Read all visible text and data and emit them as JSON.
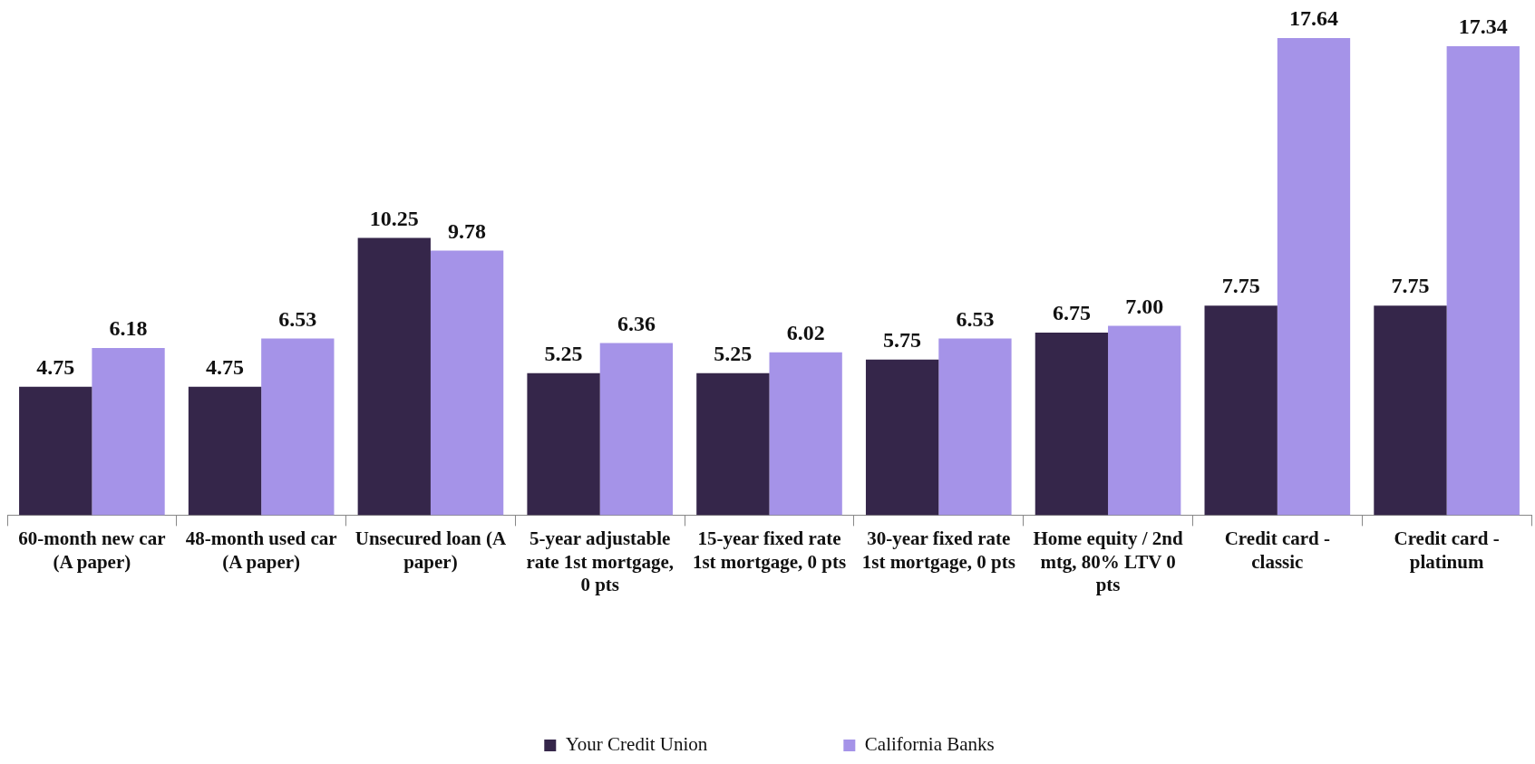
{
  "chart_data": {
    "type": "bar",
    "categories": [
      "60-month new car (A paper)",
      "48-month used car (A paper)",
      "Unsecured loan (A paper)",
      "5-year adjustable rate 1st mortgage, 0 pts",
      "15-year fixed rate 1st mortgage, 0 pts",
      "30-year fixed rate 1st mortgage, 0 pts",
      "Home equity / 2nd mtg, 80% LTV 0 pts",
      "Credit card - classic",
      "Credit card - platinum"
    ],
    "series": [
      {
        "name": "Your Credit Union",
        "color": "#35264a",
        "values": [
          4.75,
          4.75,
          10.25,
          5.25,
          5.25,
          5.75,
          6.75,
          7.75,
          7.75
        ],
        "value_labels": [
          "4.75",
          "4.75",
          "10.25",
          "5.25",
          "5.25",
          "5.75",
          "6.75",
          "7.75",
          "7.75"
        ]
      },
      {
        "name": "California Banks",
        "color": "#a593e8",
        "values": [
          6.18,
          6.53,
          9.78,
          6.36,
          6.02,
          6.53,
          7.0,
          17.64,
          17.34
        ],
        "value_labels": [
          "6.18",
          "6.53",
          "9.78",
          "6.36",
          "6.02",
          "6.53",
          "7.00",
          "17.64",
          "17.34"
        ]
      }
    ],
    "grid": false,
    "legend": "bottom"
  }
}
